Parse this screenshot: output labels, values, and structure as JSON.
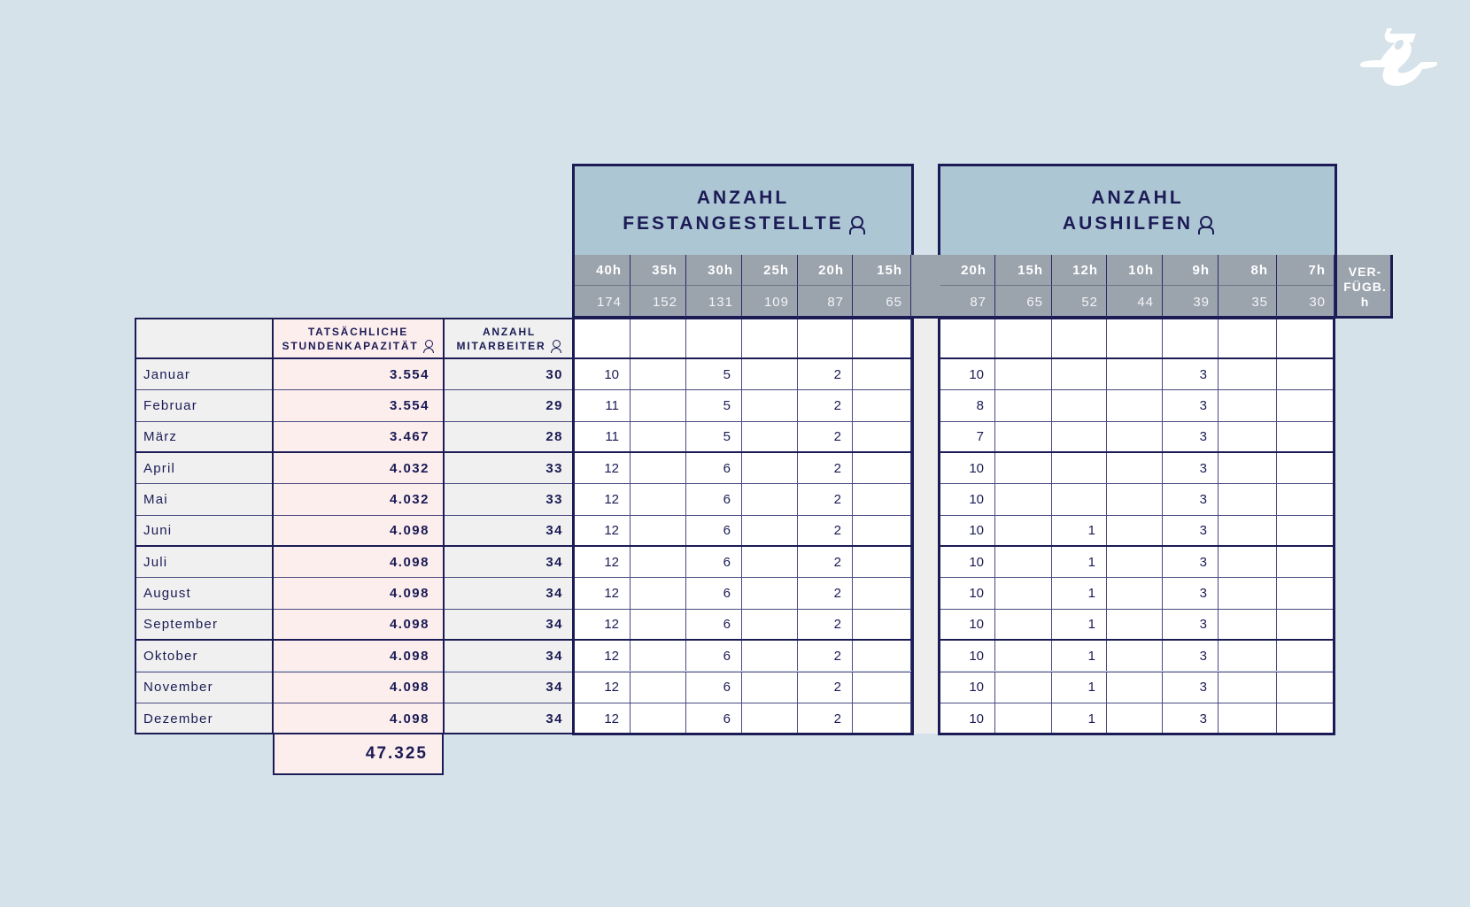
{
  "logo": {
    "text": "g",
    "color": "#ffffff"
  },
  "colors": {
    "background": "#d5e2ea",
    "group_header": "#adc6d4",
    "hours_header": "#9ba3ad",
    "border": "#1b1b55",
    "capacity_column": "#fdeeee",
    "label_column": "#f0f0f0"
  },
  "groups": {
    "festangestellte": {
      "line1": "ANZAHL",
      "line2": "FESTANGESTELLTE",
      "icon": "person-icon"
    },
    "aushilfen": {
      "line1": "ANZAHL",
      "line2": "AUSHILFEN",
      "icon": "person-icon"
    }
  },
  "fest_columns": [
    {
      "hours": "40h",
      "monthly": "174"
    },
    {
      "hours": "35h",
      "monthly": "152"
    },
    {
      "hours": "30h",
      "monthly": "131"
    },
    {
      "hours": "25h",
      "monthly": "109"
    },
    {
      "hours": "20h",
      "monthly": "87"
    },
    {
      "hours": "15h",
      "monthly": "65"
    }
  ],
  "aus_columns": [
    {
      "hours": "20h",
      "monthly": "87"
    },
    {
      "hours": "15h",
      "monthly": "65"
    },
    {
      "hours": "12h",
      "monthly": "52"
    },
    {
      "hours": "10h",
      "monthly": "44"
    },
    {
      "hours": "9h",
      "monthly": "39"
    },
    {
      "hours": "8h",
      "monthly": "35"
    },
    {
      "hours": "7h",
      "monthly": "30"
    }
  ],
  "verfuegbar_label": {
    "l1": "VER-",
    "l2": "FÜGB.",
    "l3": "h"
  },
  "headers": {
    "capacity": {
      "l1": "TATSÄCHLICHE",
      "l2": "STUNDENKAPAZITÄT"
    },
    "employees": {
      "l1": "ANZAHL",
      "l2": "MITARBEITER"
    }
  },
  "rows": [
    {
      "month": "Januar",
      "capacity": "3.554",
      "employees": "30",
      "fest": [
        "10",
        "",
        "5",
        "",
        "2",
        ""
      ],
      "aus": [
        "10",
        "",
        "",
        "",
        "3",
        "",
        ""
      ]
    },
    {
      "month": "Februar",
      "capacity": "3.554",
      "employees": "29",
      "fest": [
        "11",
        "",
        "5",
        "",
        "2",
        ""
      ],
      "aus": [
        "8",
        "",
        "",
        "",
        "3",
        "",
        ""
      ]
    },
    {
      "month": "März",
      "capacity": "3.467",
      "employees": "28",
      "fest": [
        "11",
        "",
        "5",
        "",
        "2",
        ""
      ],
      "aus": [
        "7",
        "",
        "",
        "",
        "3",
        "",
        ""
      ]
    },
    {
      "month": "April",
      "capacity": "4.032",
      "employees": "33",
      "fest": [
        "12",
        "",
        "6",
        "",
        "2",
        ""
      ],
      "aus": [
        "10",
        "",
        "",
        "",
        "3",
        "",
        ""
      ]
    },
    {
      "month": "Mai",
      "capacity": "4.032",
      "employees": "33",
      "fest": [
        "12",
        "",
        "6",
        "",
        "2",
        ""
      ],
      "aus": [
        "10",
        "",
        "",
        "",
        "3",
        "",
        ""
      ]
    },
    {
      "month": "Juni",
      "capacity": "4.098",
      "employees": "34",
      "fest": [
        "12",
        "",
        "6",
        "",
        "2",
        ""
      ],
      "aus": [
        "10",
        "",
        "1",
        "",
        "3",
        "",
        ""
      ]
    },
    {
      "month": "Juli",
      "capacity": "4.098",
      "employees": "34",
      "fest": [
        "12",
        "",
        "6",
        "",
        "2",
        ""
      ],
      "aus": [
        "10",
        "",
        "1",
        "",
        "3",
        "",
        ""
      ]
    },
    {
      "month": "August",
      "capacity": "4.098",
      "employees": "34",
      "fest": [
        "12",
        "",
        "6",
        "",
        "2",
        ""
      ],
      "aus": [
        "10",
        "",
        "1",
        "",
        "3",
        "",
        ""
      ]
    },
    {
      "month": "September",
      "capacity": "4.098",
      "employees": "34",
      "fest": [
        "12",
        "",
        "6",
        "",
        "2",
        ""
      ],
      "aus": [
        "10",
        "",
        "1",
        "",
        "3",
        "",
        ""
      ]
    },
    {
      "month": "Oktober",
      "capacity": "4.098",
      "employees": "34",
      "fest": [
        "12",
        "",
        "6",
        "",
        "2",
        ""
      ],
      "aus": [
        "10",
        "",
        "1",
        "",
        "3",
        "",
        ""
      ]
    },
    {
      "month": "November",
      "capacity": "4.098",
      "employees": "34",
      "fest": [
        "12",
        "",
        "6",
        "",
        "2",
        ""
      ],
      "aus": [
        "10",
        "",
        "1",
        "",
        "3",
        "",
        ""
      ]
    },
    {
      "month": "Dezember",
      "capacity": "4.098",
      "employees": "34",
      "fest": [
        "12",
        "",
        "6",
        "",
        "2",
        ""
      ],
      "aus": [
        "10",
        "",
        "1",
        "",
        "3",
        "",
        ""
      ]
    }
  ],
  "total_capacity": "47.325"
}
